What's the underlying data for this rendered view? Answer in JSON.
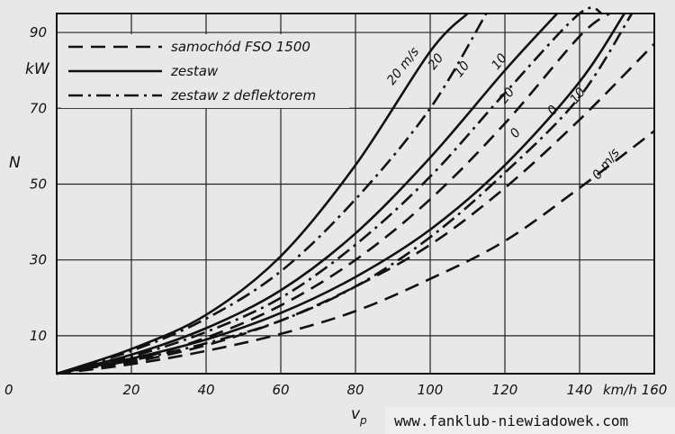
{
  "chart_data": {
    "type": "line",
    "xlabel": "v",
    "xlabel_sub": "p",
    "xunit": "km/h",
    "ylabel": "N",
    "yunit": "kW",
    "xlim": [
      0,
      160
    ],
    "ylim": [
      0,
      95
    ],
    "xticks": [
      0,
      20,
      40,
      60,
      80,
      100,
      120,
      140,
      160
    ],
    "yticks": [
      10,
      30,
      50,
      70,
      90
    ],
    "grid": true,
    "legend_position": "top-left",
    "legend": [
      {
        "label": "samochód FSO 1500",
        "style": "dashed"
      },
      {
        "label": "zestaw",
        "style": "solid"
      },
      {
        "label": "zestaw z deflektorem",
        "style": "dash-dot"
      }
    ],
    "series": [
      {
        "group": "samochód FSO 1500",
        "label": "0 m/s",
        "style": "dashed",
        "x": [
          0,
          20,
          40,
          60,
          80,
          100,
          120,
          140,
          160
        ],
        "y": [
          0,
          2.5,
          6,
          10.5,
          16.5,
          25,
          35,
          49,
          64
        ]
      },
      {
        "group": "samochód FSO 1500",
        "label": "10",
        "style": "dashed",
        "x": [
          0,
          20,
          40,
          60,
          80,
          100,
          120,
          140,
          160
        ],
        "y": [
          0,
          3,
          7.5,
          14,
          23,
          34,
          49,
          67,
          87
        ]
      },
      {
        "group": "samochód FSO 1500",
        "label": "20",
        "style": "dashed",
        "x": [
          0,
          20,
          40,
          60,
          80,
          100,
          120,
          140,
          148
        ],
        "y": [
          0,
          3.5,
          9.5,
          18,
          30,
          46,
          66,
          89,
          95
        ]
      },
      {
        "group": "zestaw",
        "label": "0",
        "style": "solid",
        "x": [
          0,
          20,
          40,
          60,
          80,
          100,
          120,
          140,
          152
        ],
        "y": [
          0,
          4,
          9,
          16,
          25.5,
          38,
          55,
          77,
          95
        ]
      },
      {
        "group": "zestaw",
        "label": "10",
        "style": "solid",
        "x": [
          0,
          20,
          40,
          60,
          80,
          100,
          120,
          134
        ],
        "y": [
          0,
          5,
          12,
          22,
          37,
          57,
          80,
          95
        ]
      },
      {
        "group": "zestaw",
        "label": "20 m/s",
        "style": "solid",
        "x": [
          0,
          20,
          40,
          60,
          80,
          100,
          110
        ],
        "y": [
          0,
          6.5,
          15.5,
          31,
          55,
          85,
          95
        ]
      },
      {
        "group": "zestaw z deflektorem",
        "label": "0",
        "style": "dash-dot",
        "x": [
          0,
          20,
          40,
          60,
          80,
          100,
          120,
          140,
          154
        ],
        "y": [
          0,
          3.5,
          8,
          14,
          23,
          36,
          53,
          73,
          95
        ]
      },
      {
        "group": "zestaw z deflektorem",
        "label": "10",
        "style": "dash-dot",
        "x": [
          0,
          20,
          40,
          60,
          80,
          100,
          120,
          140,
          146
        ],
        "y": [
          0,
          4.5,
          11,
          20,
          34,
          52,
          74,
          95,
          95
        ]
      },
      {
        "group": "zestaw z deflektorem",
        "label": "20",
        "style": "dash-dot",
        "x": [
          0,
          20,
          40,
          60,
          80,
          100,
          115
        ],
        "y": [
          0,
          6,
          14.5,
          27,
          46,
          70,
          95
        ]
      }
    ],
    "curve_labels": [
      {
        "text": "20 m/s",
        "x": 90,
        "y": 76
      },
      {
        "text": "20",
        "x": 101,
        "y": 80
      },
      {
        "text": "10",
        "x": 108,
        "y": 78
      },
      {
        "text": "10",
        "x": 118,
        "y": 80
      },
      {
        "text": "20",
        "x": 120,
        "y": 71
      },
      {
        "text": "0",
        "x": 123,
        "y": 62
      },
      {
        "text": "0",
        "x": 133,
        "y": 68
      },
      {
        "text": "10",
        "x": 139,
        "y": 71
      },
      {
        "text": "0 m/s",
        "x": 145,
        "y": 51
      }
    ]
  },
  "watermark": "www.fanklub-niewiadowek.com"
}
